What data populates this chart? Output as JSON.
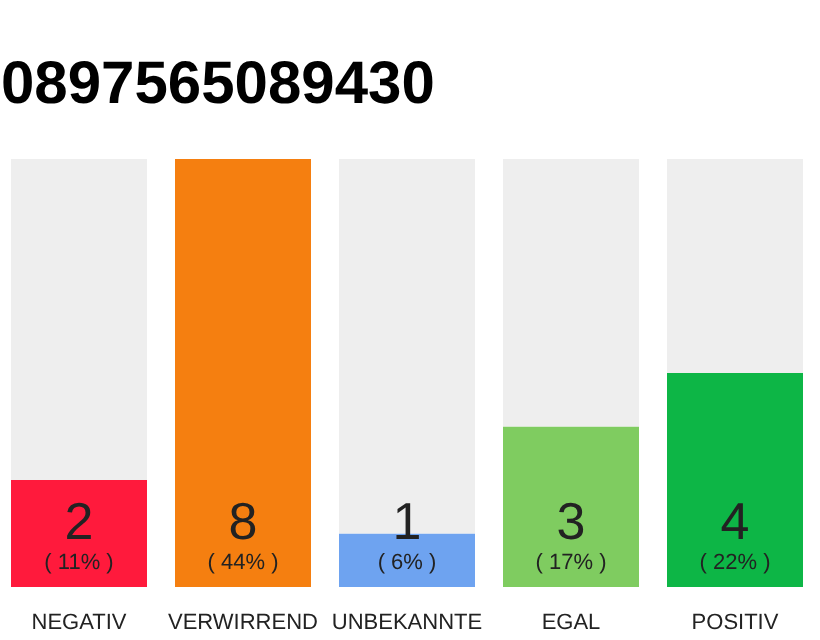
{
  "chart_data": {
    "type": "bar",
    "title": "0897565089430",
    "categories": [
      "NEGATIV",
      "VERWIRREND",
      "UNBEKANNTE",
      "EGAL",
      "POSITIV"
    ],
    "stacked": true,
    "grid": false,
    "series": [
      {
        "colors": [
          "#ff1a3c",
          "#f57f10",
          "#6ea3f0",
          "#7fcc60",
          "#0db646"
        ],
        "values": [
          2,
          8,
          1,
          3,
          4
        ],
        "value_labels": [
          "2",
          "8",
          "1",
          "3",
          "4"
        ]
      },
      {
        "color": "#eeeeee",
        "values": [
          6,
          0,
          7,
          5,
          4
        ]
      }
    ],
    "annotations": [
      "( 11% )",
      "( 44% )",
      "( 6% )",
      "( 17% )",
      "( 22% )"
    ]
  }
}
